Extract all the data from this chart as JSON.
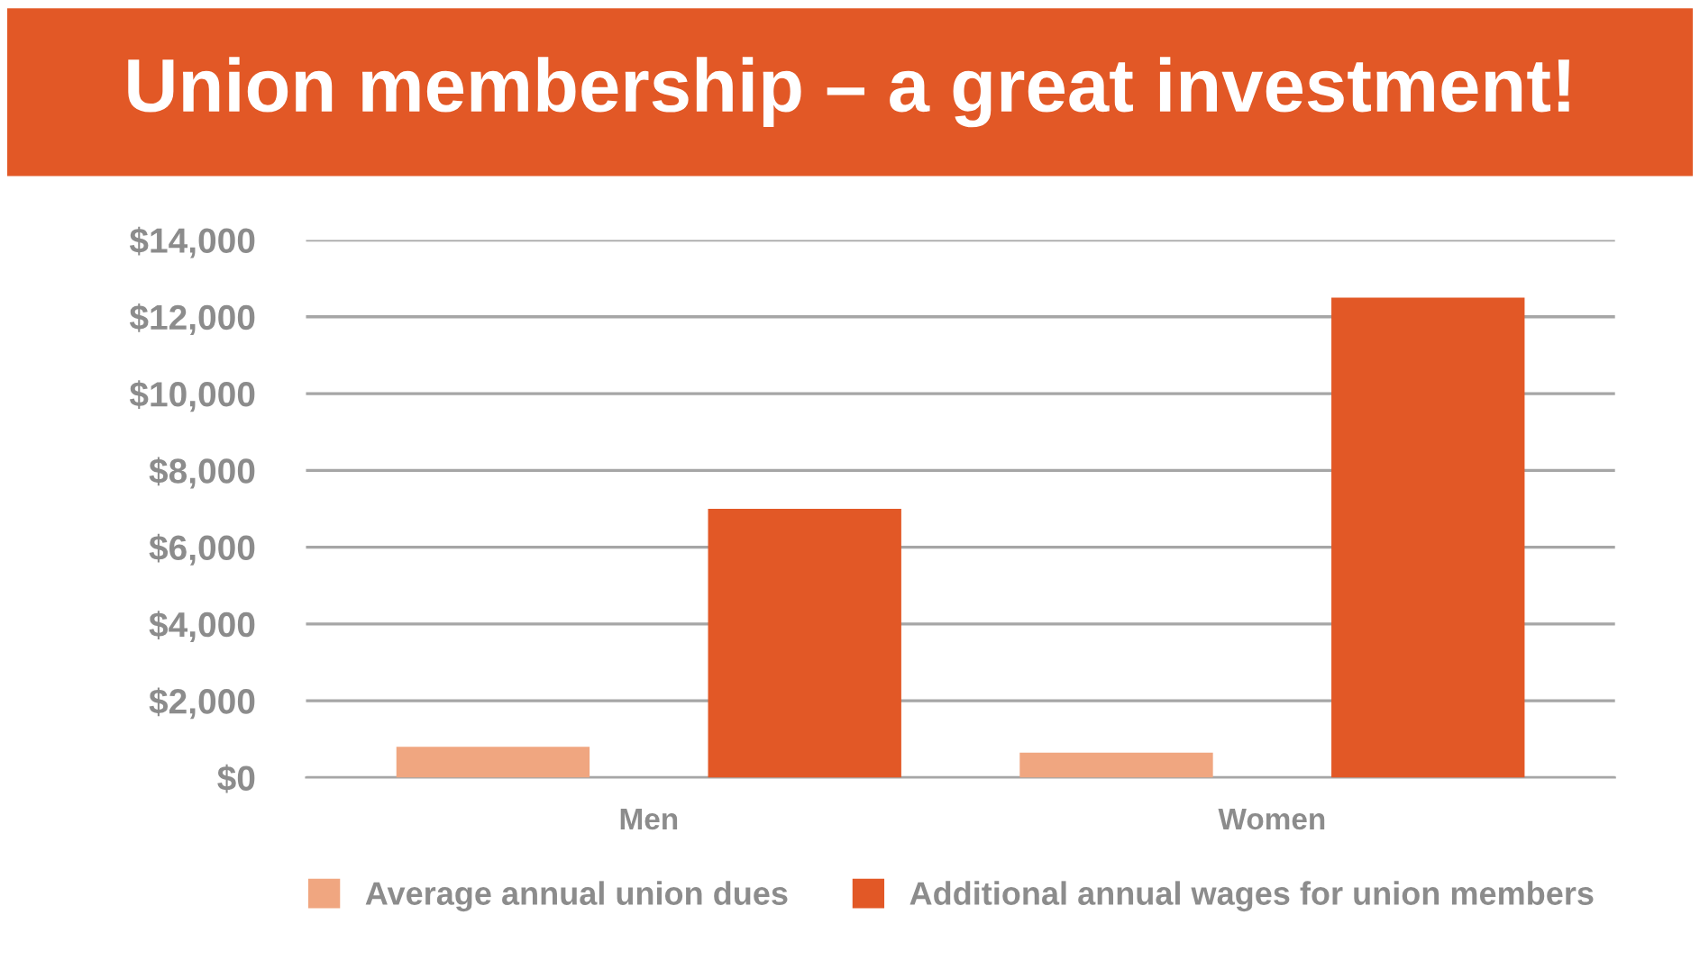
{
  "chart_data": {
    "type": "bar",
    "title": "Union membership – a great investment!",
    "categories": [
      "Men",
      "Women"
    ],
    "series": [
      {
        "name": "Average annual union dues",
        "color": "#f0a680",
        "values": [
          800,
          650
        ]
      },
      {
        "name": "Additional annual wages for union members",
        "color": "#e25826",
        "values": [
          7000,
          12500
        ]
      }
    ],
    "ylim": [
      0,
      14000
    ],
    "yticks": [
      {
        "value": 0,
        "label": "$0"
      },
      {
        "value": 2000,
        "label": "$2,000"
      },
      {
        "value": 4000,
        "label": "$4,000"
      },
      {
        "value": 6000,
        "label": "$6,000"
      },
      {
        "value": 8000,
        "label": "$8,000"
      },
      {
        "value": 10000,
        "label": "$10,000"
      },
      {
        "value": 12000,
        "label": "$12,000"
      },
      {
        "value": 14000,
        "label": "$14,000"
      }
    ],
    "grid": "y",
    "legend": "bottom"
  }
}
